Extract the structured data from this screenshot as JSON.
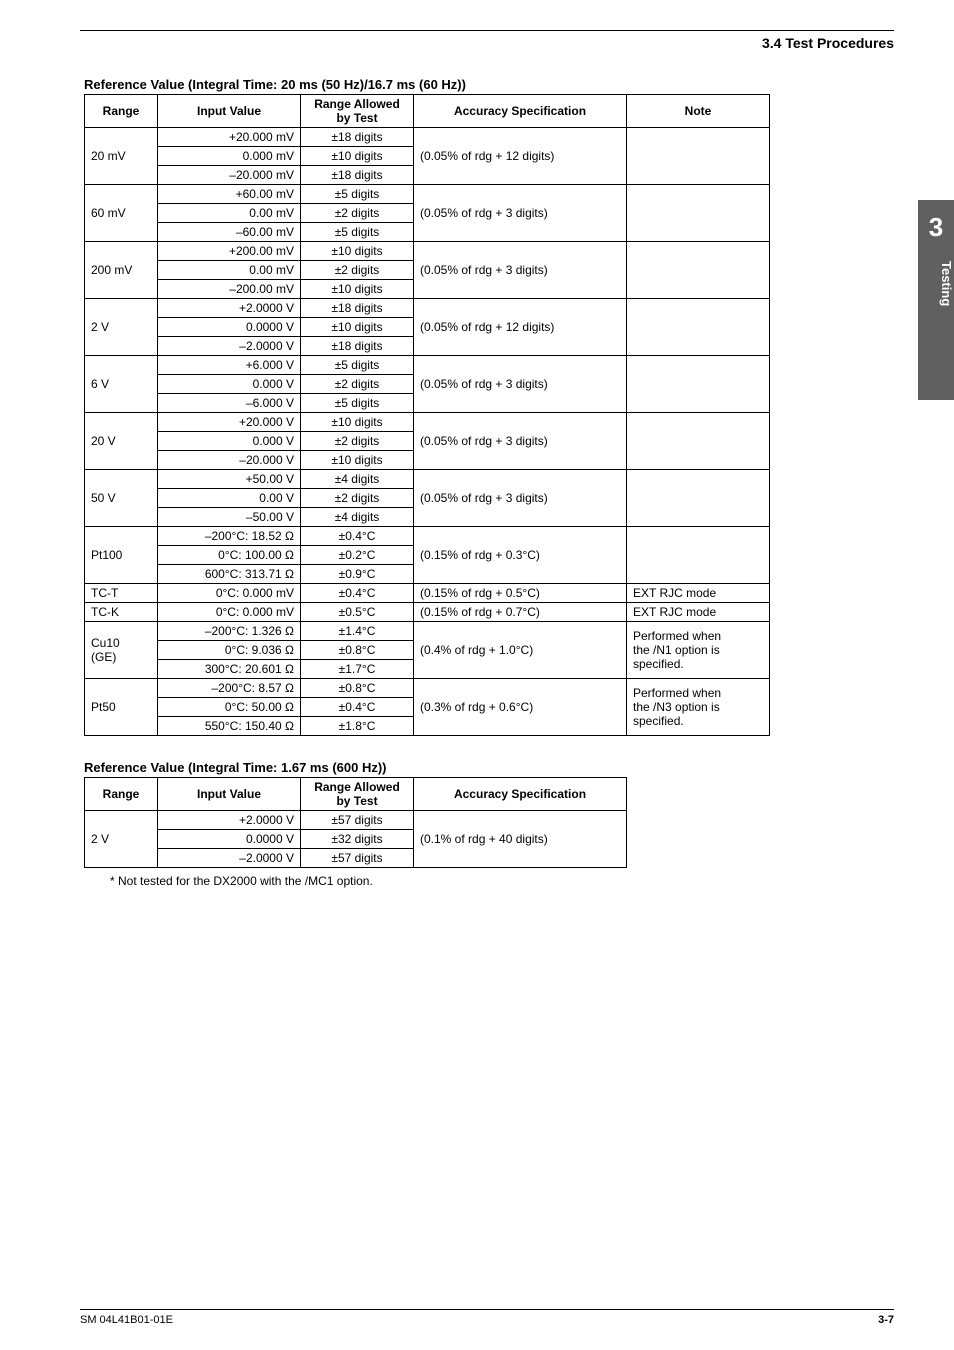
{
  "section_header": "3.4  Test Procedures",
  "side_tab": {
    "number": "3",
    "label": "Testing"
  },
  "footer": {
    "left": "SM 04L41B01-01E",
    "right": "3-7"
  },
  "table1": {
    "caption": "Reference Value (Integral Time:  20 ms (50 Hz)/16.7 ms (60 Hz))",
    "headers": {
      "range": "Range",
      "input": "Input Value",
      "allowed_l1": "Range Allowed",
      "allowed_l2": "by Test",
      "spec": "Accuracy Specification",
      "note": "Note"
    },
    "groups": [
      {
        "range": "20 mV",
        "rows": [
          {
            "input": "+20.000 mV",
            "allowed": "±18 digits"
          },
          {
            "input": "0.000 mV",
            "allowed": "±10 digits"
          },
          {
            "input": "–20.000 mV",
            "allowed": "±18 digits"
          }
        ],
        "spec": "(0.05% of rdg + 12 digits)",
        "note": ""
      },
      {
        "range": "60 mV",
        "rows": [
          {
            "input": "+60.00 mV",
            "allowed": "±5 digits"
          },
          {
            "input": "0.00 mV",
            "allowed": "±2 digits"
          },
          {
            "input": "–60.00 mV",
            "allowed": "±5 digits"
          }
        ],
        "spec": "(0.05% of rdg + 3 digits)",
        "note": ""
      },
      {
        "range": "200 mV",
        "rows": [
          {
            "input": "+200.00 mV",
            "allowed": "±10 digits"
          },
          {
            "input": "0.00 mV",
            "allowed": "±2 digits"
          },
          {
            "input": "–200.00 mV",
            "allowed": "±10 digits"
          }
        ],
        "spec": "(0.05% of rdg + 3 digits)",
        "note": ""
      },
      {
        "range": "2 V",
        "rows": [
          {
            "input": "+2.0000 V",
            "allowed": "±18 digits"
          },
          {
            "input": "0.0000 V",
            "allowed": "±10 digits"
          },
          {
            "input": "–2.0000 V",
            "allowed": "±18 digits"
          }
        ],
        "spec": "(0.05% of rdg + 12 digits)",
        "note": ""
      },
      {
        "range": "6 V",
        "rows": [
          {
            "input": "+6.000 V",
            "allowed": "±5 digits"
          },
          {
            "input": "0.000 V",
            "allowed": "±2 digits"
          },
          {
            "input": "–6.000 V",
            "allowed": "±5 digits"
          }
        ],
        "spec": "(0.05% of rdg + 3 digits)",
        "note": ""
      },
      {
        "range": "20 V",
        "rows": [
          {
            "input": "+20.000 V",
            "allowed": "±10 digits"
          },
          {
            "input": "0.000 V",
            "allowed": "±2 digits"
          },
          {
            "input": "–20.000 V",
            "allowed": "±10 digits"
          }
        ],
        "spec": "(0.05% of rdg + 3 digits)",
        "note": ""
      },
      {
        "range": "50 V",
        "rows": [
          {
            "input": "+50.00 V",
            "allowed": "±4 digits"
          },
          {
            "input": "0.00 V",
            "allowed": "±2 digits"
          },
          {
            "input": "–50.00 V",
            "allowed": "±4 digits"
          }
        ],
        "spec": "(0.05% of rdg + 3 digits)",
        "note": ""
      },
      {
        "range": "Pt100",
        "rows": [
          {
            "input": "–200°C: 18.52 Ω",
            "allowed": "±0.4°C"
          },
          {
            "input": "0°C: 100.00 Ω",
            "allowed": "±0.2°C"
          },
          {
            "input": "600°C: 313.71 Ω",
            "allowed": "±0.9°C"
          }
        ],
        "spec": "(0.15% of rdg + 0.3°C)",
        "note": ""
      }
    ],
    "single_rows": [
      {
        "range": "TC-T",
        "input": "0°C: 0.000 mV",
        "allowed": "±0.4°C",
        "spec": "(0.15% of rdg + 0.5°C)",
        "note": "EXT RJC mode"
      },
      {
        "range": "TC-K",
        "input": "0°C: 0.000 mV",
        "allowed": "±0.5°C",
        "spec": "(0.15% of rdg + 0.7°C)",
        "note": "EXT RJC mode"
      }
    ],
    "note_groups": [
      {
        "range_l1": "Cu10",
        "range_l2": "(GE)",
        "rows": [
          {
            "input": "–200°C: 1.326 Ω",
            "allowed": "±1.4°C"
          },
          {
            "input": "0°C: 9.036 Ω",
            "allowed": "±0.8°C"
          },
          {
            "input": "300°C: 20.601 Ω",
            "allowed": "±1.7°C"
          }
        ],
        "spec": "(0.4% of rdg + 1.0°C)",
        "note_l1": "Performed when",
        "note_l2": "the /N1 option is",
        "note_l3": "specified."
      },
      {
        "range_l1": "Pt50",
        "range_l2": "",
        "rows": [
          {
            "input": "–200°C: 8.57 Ω",
            "allowed": "±0.8°C"
          },
          {
            "input": "0°C: 50.00 Ω",
            "allowed": "±0.4°C"
          },
          {
            "input": "550°C: 150.40 Ω",
            "allowed": "±1.8°C"
          }
        ],
        "spec": "(0.3% of rdg + 0.6°C)",
        "note_l1": "Performed when",
        "note_l2": "the /N3 option is",
        "note_l3": "specified."
      }
    ]
  },
  "table2": {
    "caption": "Reference Value (Integral Time: 1.67 ms (600 Hz))",
    "headers": {
      "range": "Range",
      "input": "Input Value",
      "allowed_l1": "Range Allowed",
      "allowed_l2": "by Test",
      "spec": "Accuracy Specification"
    },
    "group": {
      "range": "2 V",
      "rows": [
        {
          "input": "+2.0000 V",
          "allowed": "±57 digits"
        },
        {
          "input": "0.0000 V",
          "allowed": "±32 digits"
        },
        {
          "input": "–2.0000 V",
          "allowed": "±57 digits"
        }
      ],
      "spec": "(0.1% of rdg + 40 digits)"
    }
  },
  "footnote": "*   Not tested for the DX2000 with the /MC1 option."
}
